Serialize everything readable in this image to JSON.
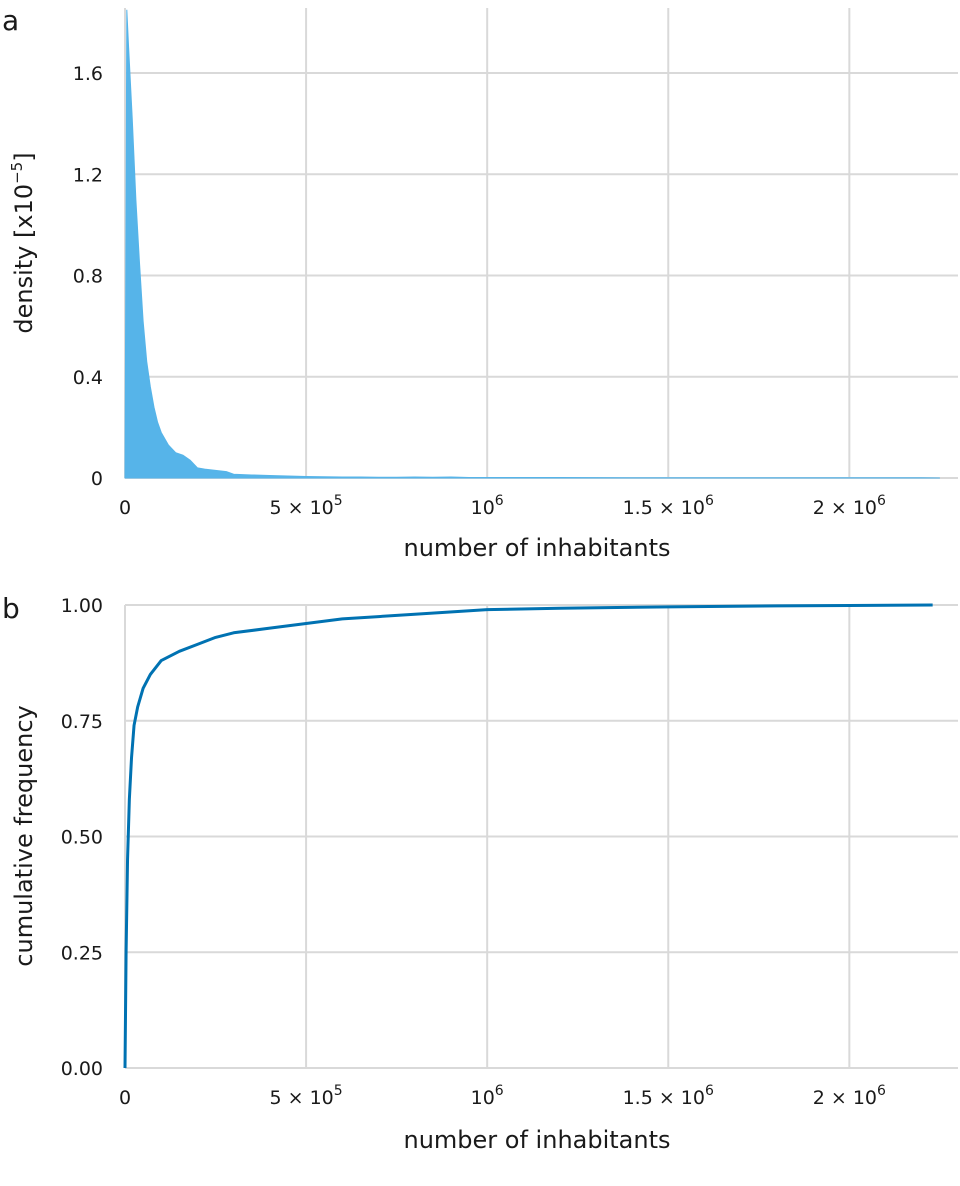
{
  "chart_data": [
    {
      "panel_label": "a",
      "type": "area",
      "xlabel": "number of inhabitants",
      "ylabel": "density [x10",
      "ylabel_sup": "−5",
      "ylabel_suffix": "]",
      "xlim": [
        0,
        2300000
      ],
      "ylim": [
        0,
        1.85
      ],
      "grid": true,
      "color": "#56B4E9",
      "x_ticks": [
        {
          "value": 0,
          "label": "0",
          "sup": ""
        },
        {
          "value": 500000,
          "label": "5 × 10",
          "sup": "5"
        },
        {
          "value": 1000000,
          "label": "10",
          "sup": "6"
        },
        {
          "value": 1500000,
          "label": "1.5 × 10",
          "sup": "6"
        },
        {
          "value": 2000000,
          "label": "2 × 10",
          "sup": "6"
        }
      ],
      "y_ticks": [
        {
          "value": 0,
          "label": "0"
        },
        {
          "value": 0.4,
          "label": "0.4"
        },
        {
          "value": 0.8,
          "label": "0.8"
        },
        {
          "value": 1.2,
          "label": "1.2"
        },
        {
          "value": 1.6,
          "label": "1.6"
        }
      ],
      "x": [
        0,
        5000,
        10000,
        20000,
        30000,
        40000,
        50000,
        60000,
        70000,
        80000,
        90000,
        100000,
        120000,
        140000,
        160000,
        180000,
        200000,
        220000,
        250000,
        280000,
        300000,
        350000,
        400000,
        450000,
        500000,
        550000,
        600000,
        650000,
        700000,
        750000,
        800000,
        850000,
        900000,
        950000,
        1000000,
        1200000,
        1400000,
        1600000,
        1800000,
        2000000,
        2200000,
        2250000
      ],
      "y": [
        0,
        1.85,
        1.7,
        1.42,
        1.1,
        0.85,
        0.62,
        0.46,
        0.36,
        0.28,
        0.22,
        0.18,
        0.13,
        0.1,
        0.09,
        0.07,
        0.04,
        0.035,
        0.03,
        0.025,
        0.015,
        0.012,
        0.01,
        0.008,
        0.006,
        0.005,
        0.004,
        0.004,
        0.003,
        0.003,
        0.004,
        0.003,
        0.004,
        0.002,
        0.002,
        0.002,
        0.001,
        0.001,
        0.001,
        0.001,
        0.001,
        0
      ]
    },
    {
      "panel_label": "b",
      "type": "line",
      "xlabel": "number of inhabitants",
      "ylabel": "cumulative frequency",
      "xlim": [
        0,
        2300000
      ],
      "ylim": [
        0,
        1.0
      ],
      "grid": true,
      "color": "#0072B2",
      "x_ticks": [
        {
          "value": 0,
          "label": "0",
          "sup": ""
        },
        {
          "value": 500000,
          "label": "5 × 10",
          "sup": "5"
        },
        {
          "value": 1000000,
          "label": "10",
          "sup": "6"
        },
        {
          "value": 1500000,
          "label": "1.5 × 10",
          "sup": "6"
        },
        {
          "value": 2000000,
          "label": "2 × 10",
          "sup": "6"
        }
      ],
      "y_ticks": [
        {
          "value": 0,
          "label": "0.00"
        },
        {
          "value": 0.25,
          "label": "0.25"
        },
        {
          "value": 0.5,
          "label": "0.50"
        },
        {
          "value": 0.75,
          "label": "0.75"
        },
        {
          "value": 1.0,
          "label": "1.00"
        }
      ],
      "x": [
        0,
        3000,
        7000,
        12000,
        18000,
        25000,
        35000,
        50000,
        70000,
        100000,
        150000,
        200000,
        250000,
        300000,
        400000,
        500000,
        600000,
        700000,
        800000,
        1000000,
        1200000,
        1500000,
        1800000,
        2000000,
        2230000
      ],
      "y": [
        0,
        0.25,
        0.45,
        0.58,
        0.67,
        0.74,
        0.78,
        0.82,
        0.85,
        0.88,
        0.9,
        0.915,
        0.93,
        0.94,
        0.95,
        0.96,
        0.97,
        0.975,
        0.98,
        0.99,
        0.993,
        0.996,
        0.998,
        0.999,
        1.0
      ]
    }
  ]
}
